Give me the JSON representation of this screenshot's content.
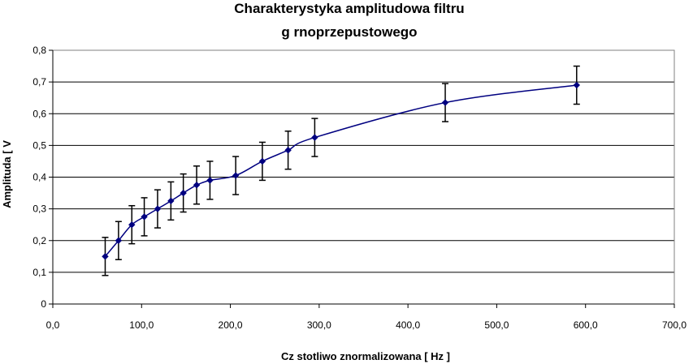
{
  "chart_data": {
    "type": "line",
    "title": [
      "Charakterystyka amplitudowa filtru",
      "g  rnoprzepustowego"
    ],
    "xlabel": "Cz  stotliwo     znormalizowana [ Hz ]",
    "ylabel": "Amplituda [ V",
    "xlim": [
      0,
      700
    ],
    "ylim": [
      0,
      0.8
    ],
    "x_ticks": [
      "0,0",
      "100,0",
      "200,0",
      "300,0",
      "400,0",
      "500,0",
      "600,0",
      "700,0"
    ],
    "y_ticks": [
      "0",
      "0,1",
      "0,2",
      "0,3",
      "0,4",
      "0,5",
      "0,6",
      "0,7",
      "0,8"
    ],
    "grid": "horizontal",
    "legend": "none",
    "colors": {
      "series": "#000080",
      "error_bars": "#000000",
      "grid": "#000000"
    },
    "series": [
      {
        "x": [
          59,
          74,
          89,
          103,
          118,
          133,
          147,
          162,
          177,
          206,
          236,
          265,
          295,
          442,
          590
        ],
        "y": [
          0.15,
          0.2,
          0.25,
          0.275,
          0.3,
          0.325,
          0.35,
          0.375,
          0.39,
          0.405,
          0.45,
          0.485,
          0.525,
          0.635,
          0.69
        ],
        "err": [
          0.06,
          0.06,
          0.06,
          0.06,
          0.06,
          0.06,
          0.06,
          0.06,
          0.06,
          0.06,
          0.06,
          0.06,
          0.06,
          0.06,
          0.06
        ]
      }
    ]
  }
}
